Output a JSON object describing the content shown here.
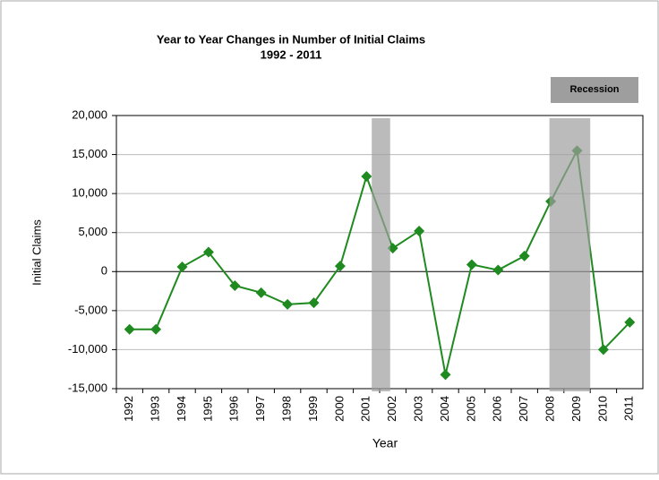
{
  "chart_data": {
    "type": "line",
    "title": "Year to Year Changes in Number of Initial Claims",
    "subtitle": "1992 - 2011",
    "x_label": "Year",
    "y_label": "Initial Claims",
    "categories": [
      "1992",
      "1993",
      "1994",
      "1995",
      "1996",
      "1997",
      "1998",
      "1999",
      "2000",
      "2001",
      "2002",
      "2003",
      "2004",
      "2005",
      "2006",
      "2007",
      "2008",
      "2009",
      "2010",
      "2011"
    ],
    "series": [
      {
        "name": "Initial Claims",
        "color": "#1f8a1f",
        "values": [
          -7400,
          -7400,
          600,
          2500,
          -1800,
          -2700,
          -4200,
          -4000,
          700,
          12200,
          3000,
          5200,
          -13200,
          900,
          200,
          2000,
          9000,
          15500,
          -10000,
          -6500
        ]
      }
    ],
    "ylim": [
      -15000,
      20000
    ],
    "yticks": [
      {
        "value": -15000,
        "label": "-15,000"
      },
      {
        "value": -10000,
        "label": "-10,000"
      },
      {
        "value": -5000,
        "label": "-5,000"
      },
      0,
      {
        "value": 5000,
        "label": "5,000"
      },
      {
        "value": 10000,
        "label": "10,000"
      },
      {
        "value": 15000,
        "label": "15,000"
      },
      {
        "value": 20000,
        "label": "20,000"
      }
    ],
    "grid": true,
    "shaded_regions": {
      "name": "Recession",
      "color": "#9e9e9e",
      "spans": [
        [
          2001.2,
          2001.9
        ],
        [
          2007.95,
          2009.5
        ]
      ]
    }
  }
}
